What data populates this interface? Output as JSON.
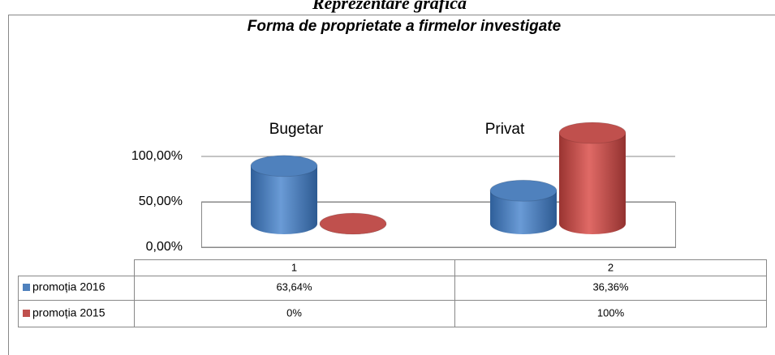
{
  "heading": "Reprezentare grafică",
  "chart_data": {
    "type": "cylinder-bar",
    "title": "Forma de proprietate a firmelor investigate",
    "annotations": [
      "Bugetar",
      "Privat"
    ],
    "categories": [
      "1",
      "2"
    ],
    "series": [
      {
        "name": "promoția 2016",
        "color": "#4f81bd",
        "values": [
          63.64,
          36.36
        ],
        "value_labels": [
          "63,64%",
          "36,36%"
        ]
      },
      {
        "name": "promoția 2015",
        "color": "#c0504d",
        "values": [
          0,
          100
        ],
        "value_labels": [
          "0%",
          "100%"
        ]
      }
    ],
    "ylim": [
      0,
      100
    ],
    "yticks": [
      {
        "value": 0,
        "label": "0,00%"
      },
      {
        "value": 50,
        "label": "50,00%"
      },
      {
        "value": 100,
        "label": "100,00%"
      }
    ],
    "grid": true
  }
}
